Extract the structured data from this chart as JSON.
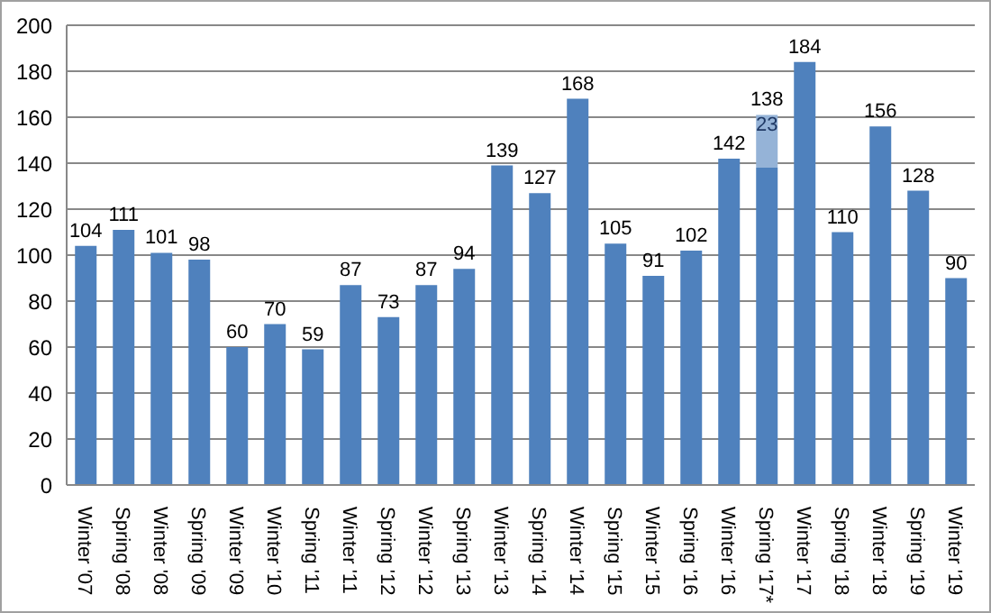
{
  "chart_data": {
    "type": "bar",
    "stacked": true,
    "data_labels": true,
    "grid": "y",
    "legend": false,
    "categories": [
      "Winter '07",
      "Spring '08",
      "Winter '08",
      "Spring '09",
      "Winter '09",
      "Winter '10",
      "Spring '11",
      "Winter '11",
      "Spring '12",
      "Winter '12",
      "Spring '13",
      "Winter '13",
      "Spring '14",
      "Winter '14",
      "Spring '15",
      "Winter '15",
      "Spring '16",
      "Winter '16",
      "Spring '17*",
      "Winter '17",
      "Spring '18",
      "Winter '18",
      "Spring '19",
      "Winter '19"
    ],
    "series": [
      {
        "color": "#4f81bd",
        "values": [
          104,
          111,
          101,
          98,
          60,
          70,
          59,
          87,
          73,
          87,
          94,
          139,
          127,
          168,
          105,
          91,
          102,
          142,
          138,
          184,
          110,
          156,
          128,
          90
        ]
      },
      {
        "color": "#95b3d7",
        "values": [
          null,
          null,
          null,
          null,
          null,
          null,
          null,
          null,
          null,
          null,
          null,
          null,
          null,
          null,
          null,
          null,
          null,
          null,
          23,
          null,
          null,
          null,
          null,
          null
        ]
      }
    ],
    "ylim": [
      0,
      200
    ],
    "yticks": [
      0,
      20,
      40,
      60,
      80,
      100,
      120,
      140,
      160,
      180,
      200
    ]
  }
}
